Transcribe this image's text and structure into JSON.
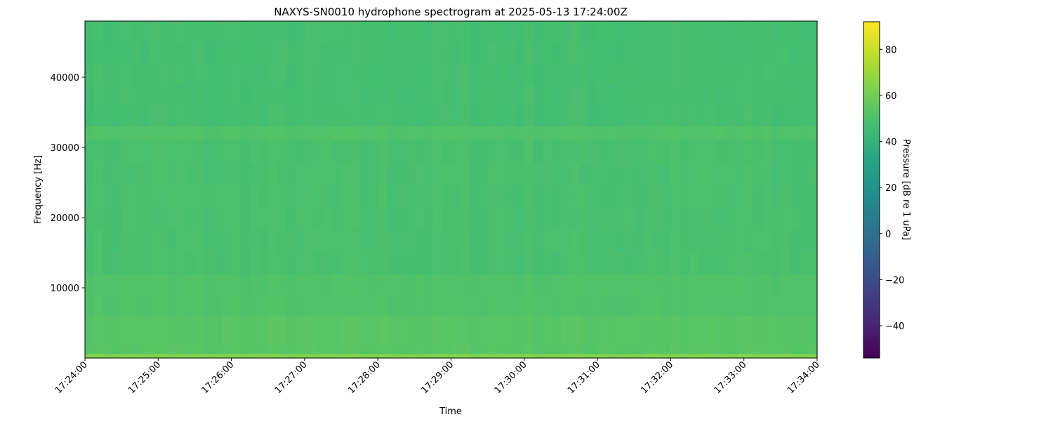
{
  "chart_data": {
    "type": "heatmap",
    "title": "NAXYS-SN0010 hydrophone spectrogram at 2025-05-13 17:24:00Z",
    "xlabel": "Time",
    "ylabel": "Frequency [Hz]",
    "colorbar_label": "Pressure [dB re 1 uPa]",
    "colormap": "viridis",
    "color_range": [
      -54,
      92
    ],
    "colorbar_ticks": [
      -40,
      -20,
      0,
      20,
      40,
      60,
      80
    ],
    "colorbar_tick_labels": [
      "−40",
      "−20",
      "0",
      "20",
      "40",
      "60",
      "80"
    ],
    "ylim": [
      0,
      48000
    ],
    "yticks": [
      10000,
      20000,
      30000,
      40000
    ],
    "ytick_labels": [
      "10000",
      "20000",
      "30000",
      "40000"
    ],
    "xlim": [
      "17:24:00",
      "17:34:00"
    ],
    "xtick_labels": [
      "17:24:00",
      "17:25:00",
      "17:26:00",
      "17:27:00",
      "17:28:00",
      "17:29:00",
      "17:30:00",
      "17:31:00",
      "17:32:00",
      "17:33:00",
      "17:34:00"
    ],
    "grid": false,
    "bands": [
      {
        "freq_hz": [
          0,
          600
        ],
        "level_db": 64
      },
      {
        "freq_hz": [
          600,
          2000
        ],
        "level_db": 53
      },
      {
        "freq_hz": [
          2000,
          6000
        ],
        "level_db": 53
      },
      {
        "freq_hz": [
          6000,
          12000
        ],
        "level_db": 51
      },
      {
        "freq_hz": [
          12000,
          31000
        ],
        "level_db": 49
      },
      {
        "freq_hz": [
          31000,
          33000
        ],
        "level_db": 51
      },
      {
        "freq_hz": [
          33000,
          48000
        ],
        "level_db": 48
      }
    ]
  }
}
